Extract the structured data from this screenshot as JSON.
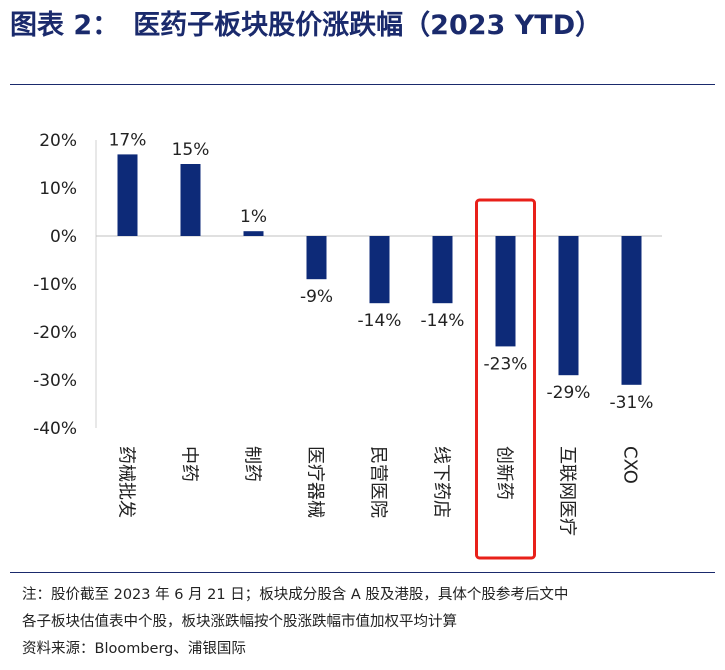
{
  "title": {
    "figure_no": "图表 2：",
    "text": "医药子板块股价涨跌幅（2023 YTD）"
  },
  "notes": {
    "line1": "注：股价截至 2023 年 6 月 21 日；板块成分股含 A 股及港股，具体个股参考后文中",
    "line2": "各子板块估值表中个股，板块涨跌幅按个股涨跌幅市值加权平均计算",
    "source": "资料来源：Bloomberg、浦银国际"
  },
  "colors": {
    "bar": "#0d2a78",
    "title": "#1a2a6c",
    "highlight_box": "#e8201a"
  },
  "chart_data": {
    "type": "bar",
    "categories": [
      "药械批发",
      "中药",
      "制药",
      "医疗器械",
      "民营医院",
      "线下药店",
      "创新药",
      "互联网医疗",
      "CXO"
    ],
    "values": [
      17,
      15,
      1,
      -9,
      -14,
      -14,
      -23,
      -29,
      -31
    ],
    "data_labels": [
      "17%",
      "15%",
      "1%",
      "-9%",
      "-14%",
      "-14%",
      "-23%",
      "-29%",
      "-31%"
    ],
    "yticks": [
      "20%",
      "10%",
      "0%",
      "-10%",
      "-20%",
      "-30%",
      "-40%"
    ],
    "ytick_values": [
      20,
      10,
      0,
      -10,
      -20,
      -30,
      -40
    ],
    "ylim": [
      -40,
      20
    ],
    "highlight_category": "创新药",
    "grid": false
  }
}
